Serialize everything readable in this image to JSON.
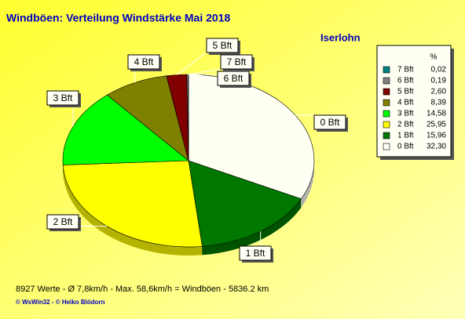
{
  "chart_data": {
    "type": "pie",
    "title": "Windböen: Verteilung Windstärke  Mai 2018",
    "subtitle": "Iserlohn",
    "legend_header": "%",
    "categories": [
      "0 Bft",
      "1 Bft",
      "2 Bft",
      "3 Bft",
      "4 Bft",
      "5 Bft",
      "6 Bft",
      "7 Bft"
    ],
    "values": [
      32.3,
      15.96,
      25.95,
      14.58,
      8.39,
      2.6,
      0.19,
      0.02
    ],
    "value_labels": [
      "32,30",
      "15,96",
      "25,95",
      "14,58",
      "8,39",
      "2,60",
      "0,19",
      "0,02"
    ],
    "colors": [
      "#fffff4",
      "#007800",
      "#ffff00",
      "#00ff00",
      "#808000",
      "#800000",
      "#808080",
      "#008080"
    ],
    "legend": "right",
    "footer": "8927 Werte   -   Ø 7,8km/h  -  Max. 58,6km/h = Windböen   -    5836.2 km",
    "credits": "© WsWin32  -  © Heiko Blödorn"
  }
}
